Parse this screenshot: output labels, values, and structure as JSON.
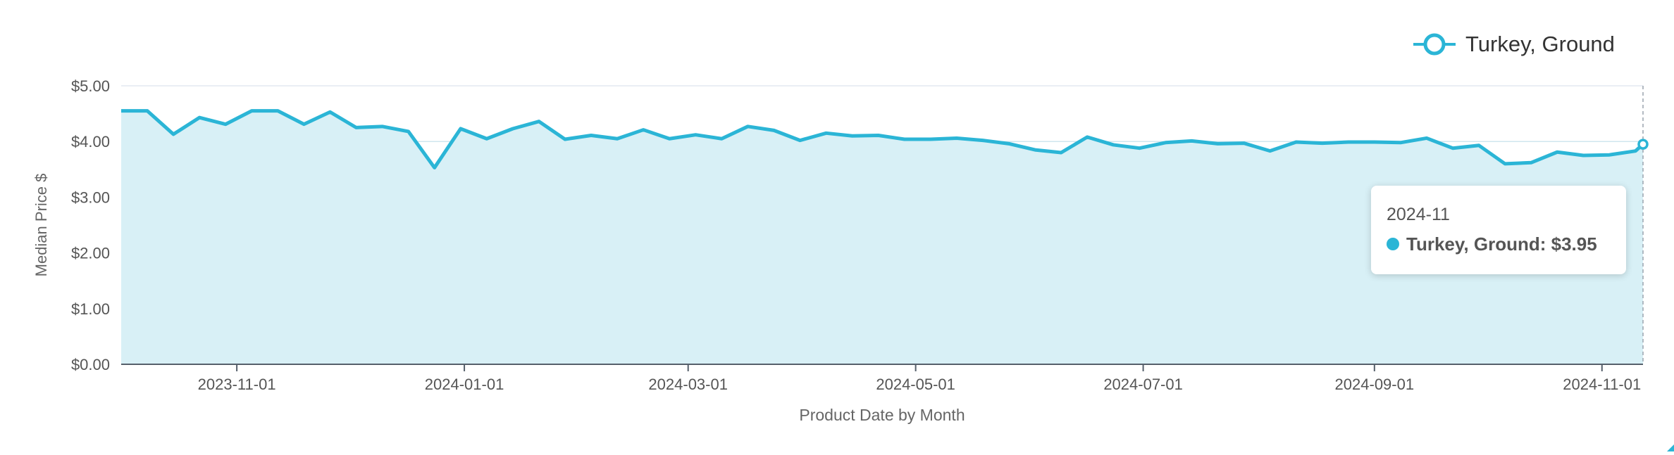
{
  "legend": {
    "label": "Turkey, Ground"
  },
  "tooltip": {
    "title": "2024-11",
    "series": "Turkey, Ground",
    "value": "$3.95"
  },
  "colors": {
    "line": "#2bb5d6",
    "area": "#d8f0f6",
    "grid": "#cfe6ee",
    "text": "#555555"
  },
  "chart_data": {
    "type": "area",
    "title": "",
    "xlabel": "Product Date by Month",
    "ylabel": "Median Price $",
    "ylim": [
      0,
      5
    ],
    "grid": true,
    "legend_position": "top-right",
    "y_ticks": [
      {
        "value": 0,
        "label": "$0.00"
      },
      {
        "value": 1,
        "label": "$1.00"
      },
      {
        "value": 2,
        "label": "$2.00"
      },
      {
        "value": 3,
        "label": "$3.00"
      },
      {
        "value": 4,
        "label": "$4.00"
      },
      {
        "value": 5,
        "label": "$5.00"
      }
    ],
    "x_ticks": [
      "2023-11-01",
      "2024-01-01",
      "2024-03-01",
      "2024-05-01",
      "2024-07-01",
      "2024-09-01",
      "2024-11-01"
    ],
    "x_range": [
      "2023-10-01",
      "2024-11-12"
    ],
    "series": [
      {
        "name": "Turkey, Ground",
        "x": [
          "2023-10-01",
          "2023-10-08",
          "2023-10-15",
          "2023-10-22",
          "2023-10-29",
          "2023-11-05",
          "2023-11-12",
          "2023-11-19",
          "2023-11-26",
          "2023-12-03",
          "2023-12-10",
          "2023-12-17",
          "2023-12-24",
          "2023-12-31",
          "2024-01-07",
          "2024-01-14",
          "2024-01-21",
          "2024-01-28",
          "2024-02-04",
          "2024-02-11",
          "2024-02-18",
          "2024-02-25",
          "2024-03-03",
          "2024-03-10",
          "2024-03-17",
          "2024-03-24",
          "2024-03-31",
          "2024-04-07",
          "2024-04-14",
          "2024-04-21",
          "2024-04-28",
          "2024-05-05",
          "2024-05-12",
          "2024-05-19",
          "2024-05-26",
          "2024-06-02",
          "2024-06-09",
          "2024-06-16",
          "2024-06-23",
          "2024-06-30",
          "2024-07-07",
          "2024-07-14",
          "2024-07-21",
          "2024-07-28",
          "2024-08-04",
          "2024-08-11",
          "2024-08-18",
          "2024-08-25",
          "2024-09-01",
          "2024-09-08",
          "2024-09-15",
          "2024-09-22",
          "2024-09-29",
          "2024-10-06",
          "2024-10-13",
          "2024-10-20",
          "2024-10-27",
          "2024-11-03",
          "2024-11-10",
          "2024-11-12"
        ],
        "y": [
          4.55,
          4.55,
          4.13,
          4.43,
          4.31,
          4.55,
          4.55,
          4.31,
          4.53,
          4.25,
          4.27,
          4.18,
          3.53,
          4.23,
          4.05,
          4.23,
          4.36,
          4.04,
          4.11,
          4.05,
          4.21,
          4.05,
          4.12,
          4.05,
          4.27,
          4.2,
          4.02,
          4.15,
          4.1,
          4.11,
          4.04,
          4.04,
          4.06,
          4.02,
          3.96,
          3.85,
          3.8,
          4.08,
          3.94,
          3.88,
          3.98,
          4.01,
          3.96,
          3.97,
          3.83,
          3.99,
          3.97,
          3.99,
          3.99,
          3.98,
          4.06,
          3.88,
          3.93,
          3.6,
          3.62,
          3.81,
          3.75,
          3.76,
          3.83,
          3.95
        ]
      }
    ]
  }
}
